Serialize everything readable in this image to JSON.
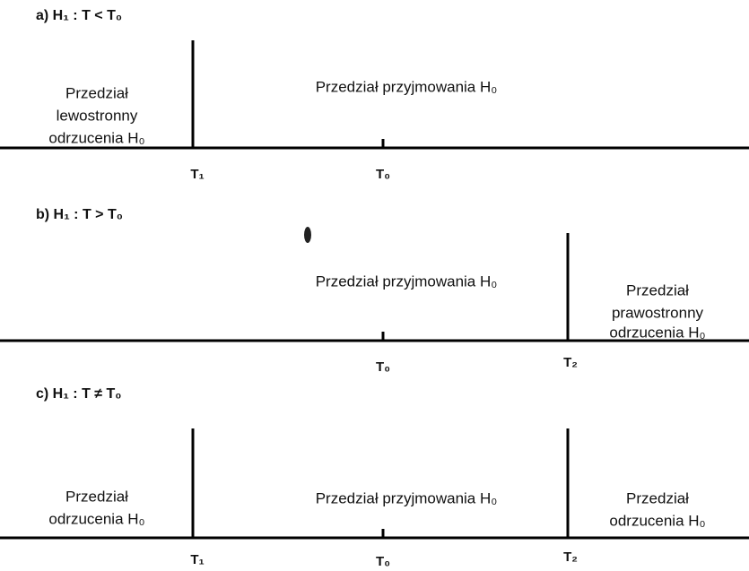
{
  "panels": [
    {
      "heading": "a) H₁ : T < T₀",
      "regions": [
        {
          "lines": [
            "Przedział",
            "lewostronny",
            "odrzucenia H₀"
          ]
        },
        {
          "lines": [
            "Przedział przyjmowania H₀"
          ]
        }
      ],
      "ticks": [
        "T₁",
        "T₀"
      ]
    },
    {
      "heading": "b) H₁ : T > T₀",
      "regions": [
        {
          "lines": [
            "Przedział przyjmowania H₀"
          ]
        },
        {
          "lines": [
            "Przedział",
            "prawostronny",
            "odrzucenia H₀"
          ]
        }
      ],
      "ticks": [
        "T₀",
        "T₂"
      ]
    },
    {
      "heading": "c) H₁ : T ≠ T₀",
      "regions": [
        {
          "lines": [
            "Przedział",
            "odrzucenia H₀"
          ]
        },
        {
          "lines": [
            "Przedział przyjmowania H₀"
          ]
        },
        {
          "lines": [
            "Przedział",
            "odrzucenia H₀"
          ]
        }
      ],
      "ticks": [
        "T₁",
        "T₀",
        "T₂"
      ]
    }
  ]
}
